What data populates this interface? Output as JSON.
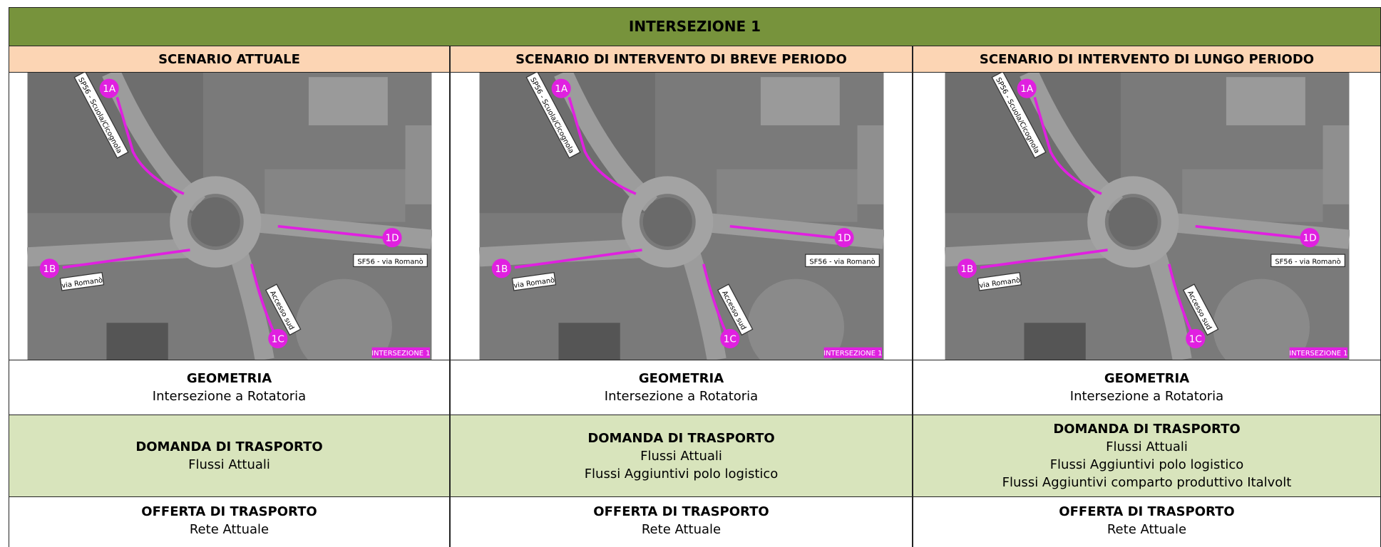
{
  "title": "INTERSEZIONE 1",
  "map_labels": {
    "a": "1A",
    "b": "1B",
    "c": "1C",
    "d": "1D",
    "road_east": "SF56 - via Romanò",
    "road_west": "via Romanò",
    "road_south": "Accesso sud",
    "road_north": "SP56 - Scuola/Cicognola",
    "tag": "INTERSEZIONE 1"
  },
  "columns": [
    {
      "header": "SCENARIO ATTUALE",
      "geometria": {
        "label": "GEOMETRIA",
        "lines": [
          "Intersezione a Rotatoria"
        ]
      },
      "domanda": {
        "label": "DOMANDA DI TRASPORTO",
        "lines": [
          "Flussi Attuali"
        ]
      },
      "offerta": {
        "label": "OFFERTA DI TRASPORTO",
        "lines": [
          "Rete Attuale"
        ]
      }
    },
    {
      "header": "SCENARIO DI INTERVENTO DI BREVE PERIODO",
      "geometria": {
        "label": "GEOMETRIA",
        "lines": [
          "Intersezione a Rotatoria"
        ]
      },
      "domanda": {
        "label": "DOMANDA DI TRASPORTO",
        "lines": [
          "Flussi Attuali",
          "Flussi Aggiuntivi polo logistico"
        ]
      },
      "offerta": {
        "label": "OFFERTA DI TRASPORTO",
        "lines": [
          "Rete Attuale"
        ]
      }
    },
    {
      "header": "SCENARIO DI INTERVENTO DI LUNGO PERIODO",
      "geometria": {
        "label": "GEOMETRIA",
        "lines": [
          "Intersezione a Rotatoria"
        ]
      },
      "domanda": {
        "label": "DOMANDA DI TRASPORTO",
        "lines": [
          "Flussi Attuali",
          "Flussi Aggiuntivi polo logistico",
          "Flussi Aggiuntivi comparto produttivo Italvolt"
        ]
      },
      "offerta": {
        "label": "OFFERTA DI TRASPORTO",
        "lines": [
          "Rete Attuale"
        ]
      }
    }
  ]
}
